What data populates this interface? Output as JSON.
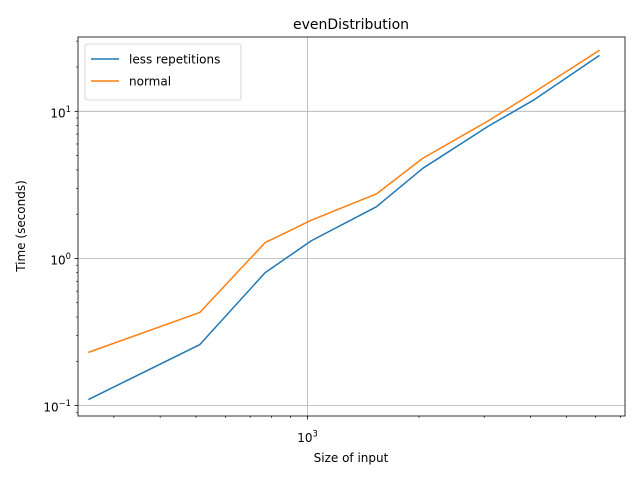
{
  "chart_data": {
    "type": "line",
    "title": "evenDistribution",
    "xlabel": "Size of input",
    "ylabel": "Time (seconds)",
    "xscale": "log",
    "yscale": "log",
    "xlim": [
      240,
      7200
    ],
    "ylim": [
      0.085,
      32
    ],
    "grid": true,
    "legend_position": "upper-left",
    "x_major_ticks": [
      {
        "value": 1000,
        "label": "10^3"
      }
    ],
    "x_minor_ticks": [
      300,
      400,
      500,
      600,
      700,
      800,
      900,
      2000,
      3000,
      4000,
      5000,
      6000,
      7000
    ],
    "y_major_ticks": [
      {
        "value": 0.1,
        "label": "10^-1"
      },
      {
        "value": 1,
        "label": "10^0"
      },
      {
        "value": 10,
        "label": "10^1"
      }
    ],
    "y_minor_ticks": [
      0.09,
      0.2,
      0.3,
      0.4,
      0.5,
      0.6,
      0.7,
      0.8,
      0.9,
      2,
      3,
      4,
      5,
      6,
      7,
      8,
      9,
      20,
      30
    ],
    "x": [
      256,
      512,
      768,
      1024,
      1536,
      2048,
      3072,
      4096,
      6144
    ],
    "series": [
      {
        "name": "less repetitions",
        "color": "#1f77b4",
        "values": [
          0.11,
          0.26,
          0.8,
          1.32,
          2.25,
          4.1,
          7.9,
          12.0,
          24.0
        ]
      },
      {
        "name": "normal",
        "color": "#ff7f0e",
        "values": [
          0.23,
          0.43,
          1.28,
          1.82,
          2.75,
          4.8,
          8.6,
          13.5,
          26.0
        ]
      }
    ]
  }
}
